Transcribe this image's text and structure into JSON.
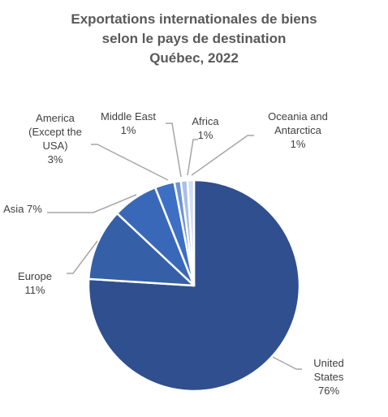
{
  "chart_data": {
    "type": "pie",
    "title": [
      "Exportations internationales de biens",
      "selon le pays de destination",
      "Québec, 2022"
    ],
    "slices": [
      {
        "name": "United States",
        "value": 76,
        "label_lines": [
          "United",
          "States",
          "76%"
        ],
        "color": "#2f4f8f"
      },
      {
        "name": "Europe",
        "value": 11,
        "label_lines": [
          "Europe",
          "11%"
        ],
        "color": "#3560a8"
      },
      {
        "name": "Asia",
        "value": 7,
        "label_lines": [
          "Asia 7%"
        ],
        "color": "#3a68b8"
      },
      {
        "name": "America (Except the USA)",
        "value": 3,
        "label_lines": [
          "America",
          "(Except the",
          "USA)",
          "3%"
        ],
        "color": "#3d6fc4"
      },
      {
        "name": "Middle East",
        "value": 1,
        "label_lines": [
          "Middle East",
          "1%"
        ],
        "color": "#6f93d6"
      },
      {
        "name": "Africa",
        "value": 1,
        "label_lines": [
          "Africa",
          "1%"
        ],
        "color": "#a9bfe6"
      },
      {
        "name": "Oceania and Antarctica",
        "value": 1,
        "label_lines": [
          "Oceania and",
          "Antarctica",
          "1%"
        ],
        "color": "#d3def2"
      }
    ],
    "legend": "none"
  }
}
